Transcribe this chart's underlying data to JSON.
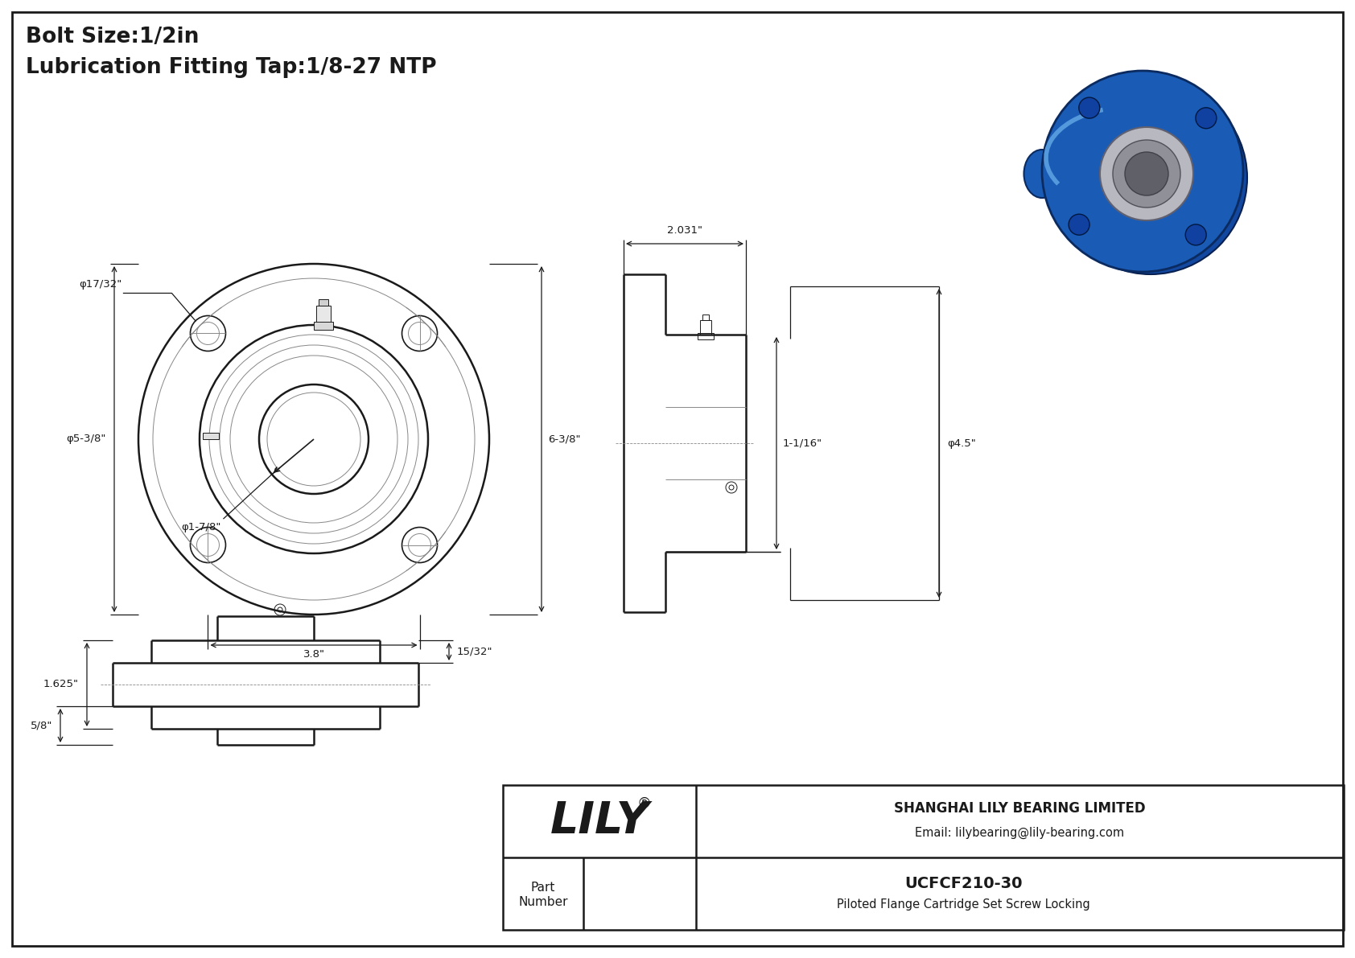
{
  "bg_color": "#ffffff",
  "line_color": "#1a1a1a",
  "title_lines": [
    "Bolt Size:1/2in",
    "Lubrication Fitting Tap:1/8-27 NTP"
  ],
  "part_number": "UCFCF210-30",
  "part_desc": "Piloted Flange Cartridge Set Screw Locking",
  "company": "SHANGHAI LILY BEARING LIMITED",
  "email": "Email: lilybearing@lily-bearing.com",
  "logo": "LILY",
  "dims": {
    "phi_17_32": "φ17/32\"",
    "phi_5_38": "φ5-3/8\"",
    "phi_1_78": "φ1-7/8\"",
    "phi_45": "φ4.5\"",
    "w_38": "3.8\"",
    "h_638": "6-3/8\"",
    "w_2031": "2.031\"",
    "d_1116": "1-1/16\"",
    "h_1625": "1.625\"",
    "h_58": "5/8\"",
    "w_1532": "15/32\""
  }
}
